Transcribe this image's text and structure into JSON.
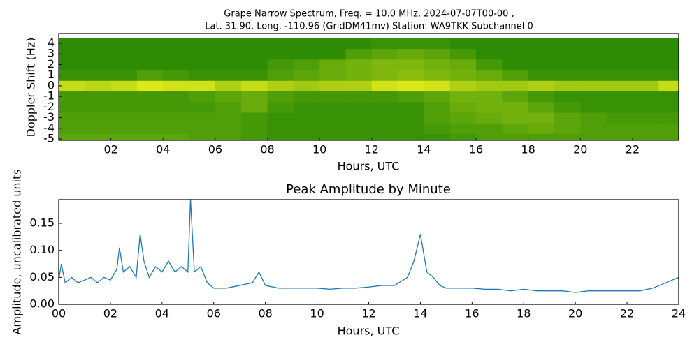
{
  "chart_data": [
    {
      "type": "heatmap",
      "title": [
        "Grape Narrow Spectrum, Freq. = 10.0 MHz, 2024-07-07T00-00 ,",
        "Lat.  31.90, Long. -110.96 (GridDM41mv) Station: WA9TKK Subchannel 0"
      ],
      "xlabel": "Hours, UTC",
      "ylabel": "Doppler Shift (Hz)",
      "colormap": [
        "#0a7a00",
        "#f4f41c"
      ],
      "x": [
        0,
        1,
        2,
        3,
        4,
        5,
        6,
        7,
        8,
        9,
        10,
        11,
        12,
        13,
        14,
        15,
        16,
        17,
        18,
        19,
        20,
        21,
        22,
        23
      ],
      "y": [
        -5,
        -4,
        -3,
        -2,
        -1,
        0,
        1,
        2,
        3,
        4
      ],
      "z": [
        [
          0.35,
          0.35,
          0.35,
          0.35,
          0.35,
          0.3,
          0.3,
          0.25,
          0.2,
          0.2,
          0.2,
          0.2,
          0.2,
          0.2,
          0.2,
          0.25,
          0.3,
          0.3,
          0.3,
          0.3,
          0.3,
          0.3,
          0.3,
          0.3
        ],
        [
          0.3,
          0.3,
          0.3,
          0.3,
          0.3,
          0.3,
          0.3,
          0.25,
          0.2,
          0.2,
          0.2,
          0.2,
          0.2,
          0.2,
          0.25,
          0.3,
          0.3,
          0.35,
          0.4,
          0.35,
          0.3,
          0.3,
          0.3,
          0.3
        ],
        [
          0.3,
          0.3,
          0.3,
          0.3,
          0.3,
          0.3,
          0.3,
          0.25,
          0.2,
          0.2,
          0.2,
          0.2,
          0.2,
          0.2,
          0.3,
          0.35,
          0.4,
          0.45,
          0.45,
          0.35,
          0.3,
          0.25,
          0.25,
          0.25
        ],
        [
          0.25,
          0.25,
          0.25,
          0.25,
          0.25,
          0.25,
          0.3,
          0.4,
          0.25,
          0.2,
          0.2,
          0.2,
          0.2,
          0.2,
          0.3,
          0.4,
          0.45,
          0.45,
          0.35,
          0.25,
          0.2,
          0.2,
          0.2,
          0.2
        ],
        [
          0.25,
          0.25,
          0.25,
          0.25,
          0.25,
          0.3,
          0.35,
          0.4,
          0.3,
          0.25,
          0.25,
          0.25,
          0.25,
          0.3,
          0.35,
          0.45,
          0.45,
          0.35,
          0.25,
          0.2,
          0.2,
          0.2,
          0.2,
          0.2
        ],
        [
          0.8,
          0.75,
          0.8,
          0.9,
          0.85,
          0.85,
          0.7,
          0.8,
          0.7,
          0.65,
          0.7,
          0.7,
          0.85,
          0.9,
          0.85,
          0.7,
          0.65,
          0.65,
          0.7,
          0.65,
          0.65,
          0.65,
          0.65,
          0.8
        ],
        [
          0.2,
          0.2,
          0.2,
          0.3,
          0.25,
          0.2,
          0.2,
          0.2,
          0.3,
          0.35,
          0.4,
          0.45,
          0.5,
          0.55,
          0.5,
          0.45,
          0.4,
          0.3,
          0.2,
          0.2,
          0.2,
          0.2,
          0.2,
          0.2
        ],
        [
          0.15,
          0.15,
          0.15,
          0.15,
          0.15,
          0.15,
          0.15,
          0.15,
          0.25,
          0.3,
          0.4,
          0.45,
          0.5,
          0.5,
          0.45,
          0.4,
          0.25,
          0.15,
          0.15,
          0.15,
          0.15,
          0.15,
          0.15,
          0.15
        ],
        [
          0.15,
          0.15,
          0.15,
          0.15,
          0.15,
          0.15,
          0.15,
          0.15,
          0.15,
          0.15,
          0.15,
          0.3,
          0.35,
          0.4,
          0.35,
          0.25,
          0.15,
          0.15,
          0.15,
          0.15,
          0.15,
          0.15,
          0.15,
          0.15
        ],
        [
          0.15,
          0.15,
          0.15,
          0.15,
          0.15,
          0.15,
          0.15,
          0.15,
          0.15,
          0.15,
          0.15,
          0.15,
          0.2,
          0.2,
          0.2,
          0.15,
          0.15,
          0.15,
          0.15,
          0.15,
          0.15,
          0.15,
          0.15,
          0.15
        ]
      ],
      "xlim": [
        0,
        23.77
      ],
      "ylim": [
        -5.13,
        4.92
      ],
      "xticks": [
        {
          "value": 2,
          "label": "02"
        },
        {
          "value": 4,
          "label": "04"
        },
        {
          "value": 6,
          "label": "06"
        },
        {
          "value": 8,
          "label": "08"
        },
        {
          "value": 10,
          "label": "10"
        },
        {
          "value": 12,
          "label": "12"
        },
        {
          "value": 14,
          "label": "14"
        },
        {
          "value": 16,
          "label": "16"
        },
        {
          "value": 18,
          "label": "18"
        },
        {
          "value": 20,
          "label": "20"
        },
        {
          "value": 22,
          "label": "22"
        }
      ],
      "yticks": [
        4,
        3,
        2,
        1,
        0,
        -1,
        -2,
        -3,
        -4,
        -5
      ]
    },
    {
      "type": "line",
      "title": "Peak Amplitude by Minute",
      "xlabel": "Hours, UTC",
      "ylabel": "Amplitude, uncalibrated units",
      "color": "#1f77b4",
      "x": [
        0,
        0.1,
        0.25,
        0.5,
        0.75,
        1,
        1.25,
        1.5,
        1.75,
        2,
        2.25,
        2.35,
        2.5,
        2.75,
        3,
        3.15,
        3.3,
        3.5,
        3.75,
        4,
        4.25,
        4.5,
        4.75,
        5,
        5.1,
        5.25,
        5.5,
        5.75,
        6,
        6.5,
        7,
        7.5,
        7.75,
        8,
        8.5,
        9,
        9.5,
        10,
        10.5,
        11,
        11.5,
        12,
        12.5,
        13,
        13.5,
        13.75,
        14,
        14.25,
        14.5,
        14.75,
        15,
        15.5,
        16,
        16.5,
        17,
        17.5,
        18,
        18.5,
        19,
        19.5,
        20,
        20.5,
        21,
        21.5,
        22,
        22.5,
        23,
        23.5,
        23.75,
        24
      ],
      "values": [
        0.045,
        0.075,
        0.04,
        0.05,
        0.04,
        0.045,
        0.05,
        0.04,
        0.05,
        0.045,
        0.065,
        0.105,
        0.06,
        0.07,
        0.05,
        0.13,
        0.08,
        0.05,
        0.07,
        0.06,
        0.08,
        0.06,
        0.07,
        0.06,
        0.195,
        0.06,
        0.07,
        0.04,
        0.03,
        0.03,
        0.035,
        0.04,
        0.06,
        0.035,
        0.03,
        0.03,
        0.03,
        0.03,
        0.028,
        0.03,
        0.03,
        0.032,
        0.035,
        0.035,
        0.05,
        0.08,
        0.13,
        0.06,
        0.05,
        0.035,
        0.03,
        0.03,
        0.03,
        0.028,
        0.028,
        0.025,
        0.028,
        0.025,
        0.025,
        0.025,
        0.022,
        0.025,
        0.025,
        0.025,
        0.025,
        0.025,
        0.03,
        0.04,
        0.045,
        0.05
      ],
      "xlim": [
        0,
        24
      ],
      "ylim": [
        0,
        0.194
      ],
      "xticks": [
        {
          "value": 0,
          "label": "00"
        },
        {
          "value": 2,
          "label": "02"
        },
        {
          "value": 4,
          "label": "04"
        },
        {
          "value": 6,
          "label": "06"
        },
        {
          "value": 8,
          "label": "08"
        },
        {
          "value": 10,
          "label": "10"
        },
        {
          "value": 12,
          "label": "12"
        },
        {
          "value": 14,
          "label": "14"
        },
        {
          "value": 16,
          "label": "16"
        },
        {
          "value": 18,
          "label": "18"
        },
        {
          "value": 20,
          "label": "20"
        },
        {
          "value": 22,
          "label": "22"
        },
        {
          "value": 24,
          "label": "24"
        }
      ],
      "yticks": [
        {
          "value": 0,
          "label": "0.00"
        },
        {
          "value": 0.05,
          "label": "0.05"
        },
        {
          "value": 0.1,
          "label": "0.10"
        },
        {
          "value": 0.15,
          "label": "0.15"
        }
      ]
    }
  ]
}
